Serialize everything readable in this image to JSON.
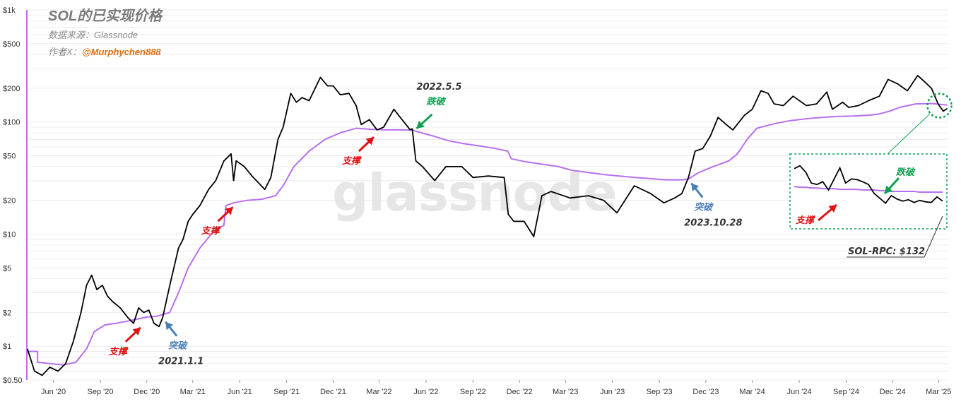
{
  "header": {
    "title": "SOL的已实现价格",
    "source": "数据来源：Glassnode",
    "author_prefix": "作者X：",
    "author_handle": "@Murphychen888"
  },
  "watermark": "glassnode",
  "colors": {
    "price": "#000000",
    "realized": "#b76ff0",
    "support": "#e01010",
    "breakdown": "#10a050",
    "breakout": "#4a7fb8",
    "axis_line": "#c26bf0",
    "grid": "#ececec"
  },
  "chart_data": {
    "type": "line",
    "title": "SOL的已实现价格",
    "y_scale": "log",
    "ylim": [
      0.5,
      1000
    ],
    "y_ticks": [
      "$0.50",
      "$1",
      "$2",
      "$5",
      "$10",
      "$20",
      "$50",
      "$100",
      "$200",
      "$500",
      "$1k"
    ],
    "y_tick_values": [
      0.5,
      1,
      2,
      5,
      10,
      20,
      50,
      100,
      200,
      500,
      1000
    ],
    "x_ticks": [
      "Jun '20",
      "Sep '20",
      "Dec '20",
      "Mar '21",
      "Jun '21",
      "Sep '21",
      "Dec '21",
      "Mar '22",
      "Jun '22",
      "Sep '22",
      "Dec '22",
      "Mar '23",
      "Jun '23",
      "Sep '23",
      "Dec '23",
      "Mar '24",
      "Jun '24",
      "Sep '24",
      "Dec '24",
      "Mar '25"
    ],
    "x_tick_dates": [
      "2020-06-01",
      "2020-09-01",
      "2020-12-01",
      "2021-03-01",
      "2021-06-01",
      "2021-09-01",
      "2021-12-01",
      "2022-03-01",
      "2022-06-01",
      "2022-09-01",
      "2022-12-01",
      "2023-03-01",
      "2023-06-01",
      "2023-09-01",
      "2023-12-01",
      "2024-03-01",
      "2024-06-01",
      "2024-09-01",
      "2024-12-01",
      "2025-03-01"
    ],
    "xlim": [
      "2020-04-10",
      "2025-03-20"
    ],
    "grid": true,
    "legend": "none",
    "series": [
      {
        "key": "price",
        "x": [
          "2020-04-11",
          "2020-04-25",
          "2020-05-10",
          "2020-05-25",
          "2020-06-10",
          "2020-06-25",
          "2020-07-10",
          "2020-07-25",
          "2020-08-05",
          "2020-08-15",
          "2020-08-25",
          "2020-09-05",
          "2020-09-15",
          "2020-09-25",
          "2020-10-10",
          "2020-10-25",
          "2020-11-05",
          "2020-11-15",
          "2020-11-25",
          "2020-12-05",
          "2020-12-15",
          "2020-12-25",
          "2021-01-01",
          "2021-01-15",
          "2021-02-01",
          "2021-02-10",
          "2021-02-20",
          "2021-03-01",
          "2021-03-15",
          "2021-04-01",
          "2021-04-15",
          "2021-05-01",
          "2021-05-15",
          "2021-05-20",
          "2021-05-25",
          "2021-06-10",
          "2021-06-25",
          "2021-07-10",
          "2021-07-20",
          "2021-08-01",
          "2021-08-15",
          "2021-08-25",
          "2021-09-09",
          "2021-09-20",
          "2021-10-01",
          "2021-10-15",
          "2021-11-06",
          "2021-11-20",
          "2021-12-01",
          "2021-12-15",
          "2022-01-01",
          "2022-01-15",
          "2022-01-25",
          "2022-02-10",
          "2022-02-25",
          "2022-03-10",
          "2022-03-30",
          "2022-04-15",
          "2022-05-01",
          "2022-05-05",
          "2022-05-12",
          "2022-05-25",
          "2022-06-18",
          "2022-07-10",
          "2022-08-10",
          "2022-09-01",
          "2022-10-01",
          "2022-11-01",
          "2022-11-09",
          "2022-11-20",
          "2022-12-10",
          "2022-12-29",
          "2023-01-14",
          "2023-02-01",
          "2023-03-10",
          "2023-04-15",
          "2023-05-15",
          "2023-06-10",
          "2023-07-14",
          "2023-08-15",
          "2023-09-10",
          "2023-10-01",
          "2023-10-15",
          "2023-10-28",
          "2023-11-10",
          "2023-11-25",
          "2023-12-10",
          "2023-12-25",
          "2024-01-10",
          "2024-01-23",
          "2024-02-15",
          "2024-03-01",
          "2024-03-18",
          "2024-04-01",
          "2024-04-13",
          "2024-05-01",
          "2024-05-20",
          "2024-06-15",
          "2024-07-05",
          "2024-07-25",
          "2024-08-05",
          "2024-08-25",
          "2024-09-06",
          "2024-09-25",
          "2024-10-15",
          "2024-11-05",
          "2024-11-22",
          "2024-12-10",
          "2024-12-30",
          "2025-01-19",
          "2025-02-01",
          "2025-02-15",
          "2025-02-28",
          "2025-03-10",
          "2025-03-18"
        ],
        "values": [
          0.95,
          0.6,
          0.55,
          0.65,
          0.6,
          0.7,
          1.1,
          2.0,
          3.5,
          4.3,
          3.2,
          3.5,
          2.8,
          2.5,
          2.2,
          1.8,
          1.6,
          2.2,
          2.0,
          2.1,
          1.6,
          1.5,
          1.8,
          3.5,
          7.5,
          9.0,
          13.0,
          15.0,
          18.0,
          25.0,
          30.0,
          45.0,
          52.0,
          30.0,
          45.0,
          40.0,
          33.0,
          28.0,
          25.0,
          32.0,
          70.0,
          90.0,
          180.0,
          150.0,
          165.0,
          155.0,
          250.0,
          210.0,
          210.0,
          175.0,
          180.0,
          140.0,
          95.0,
          105.0,
          85.0,
          90.0,
          130.0,
          105.0,
          85.0,
          87.0,
          45.0,
          40.0,
          30.0,
          40.0,
          40.0,
          32.0,
          33.0,
          32.0,
          15.0,
          13.0,
          13.0,
          9.5,
          22.0,
          24.0,
          21.0,
          22.0,
          20.0,
          15.5,
          27.0,
          23.0,
          19.0,
          21.0,
          23.0,
          32.0,
          55.0,
          58.0,
          75.0,
          110.0,
          95.0,
          85.0,
          115.0,
          130.0,
          190.0,
          180.0,
          145.0,
          140.0,
          170.0,
          140.0,
          145.0,
          185.0,
          130.0,
          150.0,
          135.0,
          140.0,
          155.0,
          170.0,
          240.0,
          220.0,
          190.0,
          260.0,
          230.0,
          200.0,
          145.0,
          125.0,
          132.0
        ]
      },
      {
        "key": "realized",
        "x": [
          "2020-04-11",
          "2020-05-01",
          "2020-05-01",
          "2020-06-20",
          "2020-07-15",
          "2020-08-05",
          "2020-08-20",
          "2020-09-10",
          "2020-10-01",
          "2020-11-01",
          "2020-12-01",
          "2020-12-20",
          "2021-01-15",
          "2021-02-01",
          "2021-02-20",
          "2021-03-15",
          "2021-04-10",
          "2021-05-01",
          "2021-05-05",
          "2021-05-20",
          "2021-06-15",
          "2021-07-15",
          "2021-08-10",
          "2021-08-25",
          "2021-09-15",
          "2021-10-15",
          "2021-11-15",
          "2021-12-15",
          "2022-01-15",
          "2022-02-15",
          "2022-03-15",
          "2022-04-15",
          "2022-05-05",
          "2022-06-15",
          "2022-07-15",
          "2022-08-15",
          "2022-09-15",
          "2022-10-15",
          "2022-11-08",
          "2022-11-15",
          "2022-12-15",
          "2023-01-15",
          "2023-02-15",
          "2023-03-15",
          "2023-05-15",
          "2023-07-15",
          "2023-09-15",
          "2023-10-15",
          "2023-10-28",
          "2023-11-15",
          "2023-12-15",
          "2024-01-15",
          "2024-02-01",
          "2024-02-20",
          "2024-03-10",
          "2024-04-15",
          "2024-05-15",
          "2024-06-15",
          "2024-07-15",
          "2024-08-15",
          "2024-09-15",
          "2024-10-15",
          "2024-11-05",
          "2024-11-25",
          "2024-12-15",
          "2025-01-15",
          "2025-02-15",
          "2025-03-18"
        ],
        "values": [
          0.9,
          0.9,
          0.72,
          0.68,
          0.72,
          0.95,
          1.35,
          1.55,
          1.6,
          1.7,
          1.82,
          1.85,
          2.0,
          3.0,
          5.0,
          7.5,
          10.5,
          12.0,
          18.0,
          19.0,
          20.0,
          20.5,
          22.0,
          27.0,
          40.0,
          55.0,
          70.0,
          80.0,
          88.0,
          86.0,
          85.0,
          85.0,
          84.5,
          75.0,
          68.0,
          64.0,
          61.0,
          58.0,
          55.0,
          47.0,
          44.0,
          42.0,
          40.0,
          37.0,
          34.0,
          32.0,
          30.5,
          30.5,
          31.0,
          35.0,
          40.0,
          45.0,
          52.0,
          70.0,
          88.0,
          97.0,
          103.0,
          107.0,
          110.0,
          112.0,
          113.0,
          115.0,
          118.0,
          125.0,
          135.0,
          145.0,
          146.0,
          142.0
        ]
      }
    ],
    "annotations": [
      {
        "kind": "support",
        "label": "支撑",
        "date": "2020-11-20",
        "value": 1.6
      },
      {
        "kind": "breakout",
        "label": "突破",
        "date_label": "2021.1.1",
        "date": "2021-01-01",
        "value": 1.8
      },
      {
        "kind": "support",
        "label": "支撑",
        "date": "2021-05-20",
        "value": 19.0
      },
      {
        "kind": "support",
        "label": "支撑",
        "date": "2022-02-20",
        "value": 80.0
      },
      {
        "kind": "breakdown",
        "label": "跌破",
        "date_label": "2022.5.5",
        "date": "2022-05-05",
        "value": 85.0
      },
      {
        "kind": "breakout",
        "label": "突破",
        "date_label": "2023.10.28",
        "date": "2023-10-28",
        "value": 31.0
      }
    ],
    "inset": {
      "support_label": "支撑",
      "breakdown_label": "跌破",
      "price_tag": "SOL-RPC: $132",
      "price": [
        0.83,
        0.87,
        0.78,
        0.62,
        0.6,
        0.64,
        0.52,
        0.68,
        0.84,
        0.62,
        0.68,
        0.67,
        0.64,
        0.6,
        0.47,
        0.4,
        0.33,
        0.44,
        0.39,
        0.36,
        0.38,
        0.34,
        0.37,
        0.35,
        0.34,
        0.42,
        0.36
      ],
      "realized": [
        0.57,
        0.56,
        0.56,
        0.55,
        0.55,
        0.54,
        0.54,
        0.54,
        0.53,
        0.53,
        0.53,
        0.53,
        0.52,
        0.52,
        0.52,
        0.51,
        0.51,
        0.5,
        0.5,
        0.5,
        0.5,
        0.5,
        0.49,
        0.49,
        0.49,
        0.49,
        0.49
      ]
    }
  }
}
